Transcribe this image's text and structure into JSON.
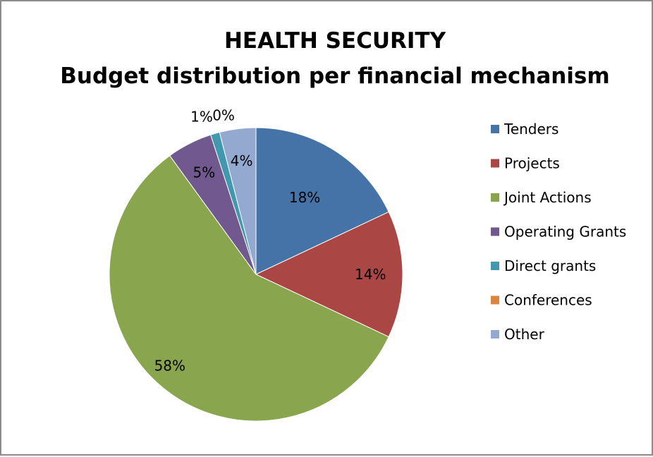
{
  "chart_data": {
    "type": "pie",
    "title": "HEALTH SECURITY",
    "subtitle": "Budget distribution per financial mechanism",
    "categories": [
      "Tenders",
      "Projects",
      "Joint Actions",
      "Operating Grants",
      "Direct grants",
      "Conferences",
      "Other"
    ],
    "values": [
      18,
      14,
      58,
      5,
      1,
      0,
      4
    ],
    "labels": [
      "18%",
      "14%",
      "58%",
      "5%",
      "1%",
      "0%",
      "4%"
    ],
    "colors": [
      "#4572A7",
      "#AA4643",
      "#89A54E",
      "#71588F",
      "#4198AF",
      "#DB843D",
      "#93A9CF"
    ],
    "legend_position": "right"
  }
}
